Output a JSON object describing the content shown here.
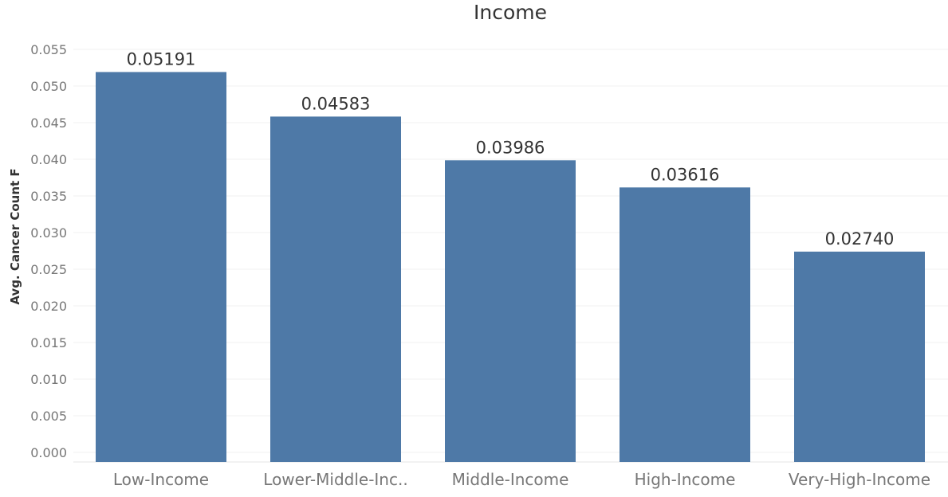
{
  "chart_data": {
    "type": "bar",
    "title": "Income",
    "xlabel": "",
    "ylabel": "Avg. Cancer Count F",
    "categories": [
      "Low-Income",
      "Lower-Middle-Inc..",
      "Middle-Income",
      "High-Income",
      "Very-High-Income"
    ],
    "values": [
      0.05191,
      0.04583,
      0.03986,
      0.03616,
      0.0274
    ],
    "data_labels": [
      "0.05191",
      "0.04583",
      "0.03986",
      "0.03616",
      "0.02740"
    ],
    "ylim": [
      0,
      0.055
    ],
    "yticks": [
      "0.000",
      "0.005",
      "0.010",
      "0.015",
      "0.020",
      "0.025",
      "0.030",
      "0.035",
      "0.040",
      "0.045",
      "0.050",
      "0.055"
    ],
    "grid": true,
    "legend": "none",
    "bar_color": "#4e79a7"
  }
}
